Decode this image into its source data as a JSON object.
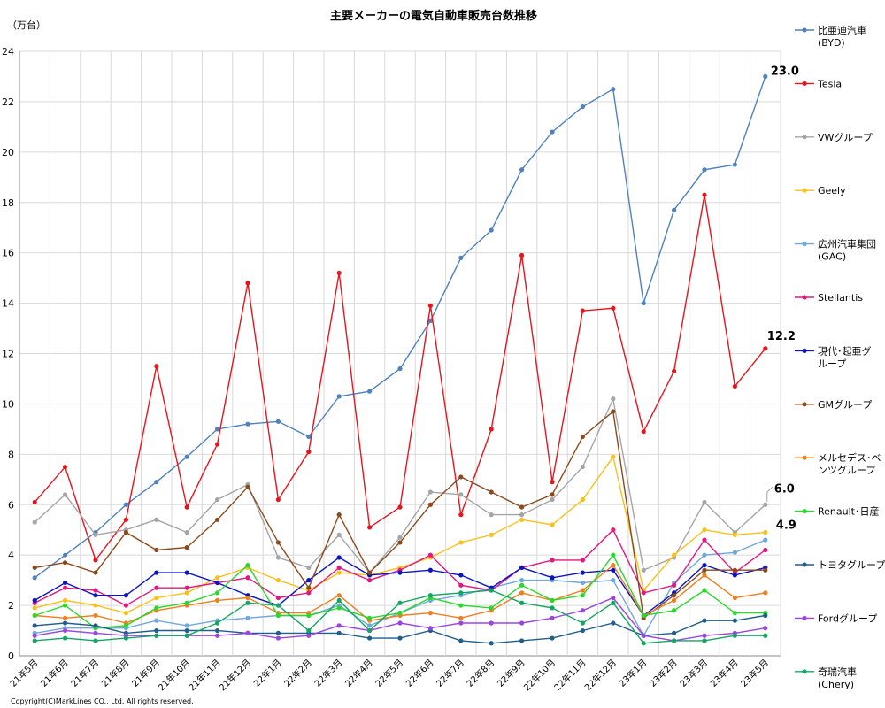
{
  "chart_data": {
    "type": "line",
    "title": "主要メーカーの電気自動車販売台数推移",
    "unit_label": "（万台）",
    "copyright": "Copyright(C)MarkLines CO., Ltd. All rights reserved.",
    "ylim": [
      0,
      24
    ],
    "yticks": [
      "0",
      "2",
      "4",
      "6",
      "8",
      "10",
      "12",
      "14",
      "16",
      "18",
      "20",
      "22",
      "24"
    ],
    "grid": true,
    "legend_position": "right",
    "categories": [
      "21年5月",
      "21年6月",
      "21年7月",
      "21年8月",
      "21年9月",
      "21年10月",
      "21年11月",
      "21年12月",
      "22年1月",
      "22年2月",
      "22年3月",
      "22年4月",
      "22年5月",
      "22年6月",
      "22年7月",
      "22年8月",
      "22年9月",
      "22年10月",
      "22年11月",
      "22年12月",
      "23年1月",
      "23年2月",
      "23年3月",
      "23年4月",
      "23年5月"
    ],
    "series": [
      {
        "name": "比亜迪汽車 (BYD)",
        "legend_lines": [
          "比亜迪汽車",
          "(BYD)"
        ],
        "color": "#4f81bd",
        "values": [
          3.1,
          4.0,
          4.9,
          6.0,
          6.9,
          7.9,
          9.0,
          9.2,
          9.3,
          8.7,
          10.3,
          10.5,
          11.4,
          13.3,
          15.8,
          16.9,
          19.3,
          20.8,
          21.8,
          22.5,
          14.0,
          17.7,
          19.3,
          19.5,
          23.0
        ]
      },
      {
        "name": "Tesla",
        "legend_lines": [
          "Tesla"
        ],
        "color": "#e8141c",
        "values": [
          6.1,
          7.5,
          3.8,
          5.4,
          11.5,
          5.9,
          8.4,
          14.8,
          6.2,
          8.1,
          15.2,
          5.1,
          5.9,
          13.9,
          5.6,
          9.0,
          15.9,
          6.9,
          13.7,
          13.8,
          8.9,
          11.3,
          18.3,
          10.7,
          12.2
        ]
      },
      {
        "name": "VWグループ",
        "legend_lines": [
          "VWグループ"
        ],
        "color": "#a5a5a5",
        "values": [
          5.3,
          6.4,
          4.8,
          5.0,
          5.4,
          4.9,
          6.2,
          6.8,
          3.9,
          3.5,
          4.8,
          3.3,
          4.7,
          6.5,
          6.4,
          5.6,
          5.6,
          6.2,
          7.5,
          10.2,
          3.4,
          3.9,
          6.1,
          4.9,
          6.0
        ]
      },
      {
        "name": "Geely",
        "legend_lines": [
          "Geely"
        ],
        "color": "#f9c118",
        "values": [
          1.9,
          2.2,
          2.0,
          1.7,
          2.3,
          2.5,
          3.1,
          3.5,
          3.0,
          2.6,
          3.3,
          3.2,
          3.5,
          3.9,
          4.5,
          4.8,
          5.4,
          5.2,
          6.2,
          7.9,
          2.6,
          4.0,
          5.0,
          4.8,
          4.9
        ]
      },
      {
        "name": "広州汽車集団 (GAC)",
        "legend_lines": [
          "広州汽車集団",
          "(GAC)"
        ],
        "color": "#6fa8dc",
        "values": [
          0.9,
          1.1,
          1.1,
          1.1,
          1.4,
          1.2,
          1.4,
          1.5,
          1.6,
          1.6,
          2.0,
          1.2,
          1.7,
          2.2,
          2.4,
          2.7,
          3.0,
          3.0,
          2.9,
          3.0,
          0.8,
          2.9,
          4.0,
          4.1,
          4.6
        ]
      },
      {
        "name": "Stellantis",
        "legend_lines": [
          "Stellantis"
        ],
        "color": "#e3177f",
        "values": [
          2.1,
          2.7,
          2.6,
          2.0,
          2.7,
          2.7,
          2.9,
          3.1,
          2.3,
          2.5,
          3.5,
          3.0,
          3.4,
          4.0,
          2.8,
          2.6,
          3.5,
          3.8,
          3.8,
          5.0,
          2.5,
          2.8,
          4.6,
          3.3,
          4.2
        ]
      },
      {
        "name": "現代･起亜グループ",
        "legend_lines": [
          "現代･起亜グ",
          "ループ"
        ],
        "color": "#0a14c2",
        "values": [
          2.2,
          2.9,
          2.4,
          2.4,
          3.3,
          3.3,
          2.9,
          2.4,
          2.0,
          3.0,
          3.9,
          3.2,
          3.3,
          3.4,
          3.2,
          2.7,
          3.5,
          3.1,
          3.3,
          3.4,
          1.6,
          2.5,
          3.6,
          3.2,
          3.5
        ]
      },
      {
        "name": "GMグループ",
        "legend_lines": [
          "GMグループ"
        ],
        "color": "#8b4a1c",
        "values": [
          3.5,
          3.7,
          3.3,
          4.9,
          4.2,
          4.3,
          5.4,
          6.7,
          4.5,
          2.7,
          5.6,
          3.3,
          4.5,
          6.0,
          7.1,
          6.5,
          5.9,
          6.4,
          8.7,
          9.7,
          1.5,
          2.4,
          3.4,
          3.4,
          3.4
        ]
      },
      {
        "name": "メルセデス･ベンツグループ",
        "legend_lines": [
          "メルセデス･ベ",
          "ンツグループ"
        ],
        "color": "#f07e1e",
        "values": [
          1.6,
          1.5,
          1.6,
          1.3,
          1.8,
          2.0,
          2.2,
          2.3,
          1.7,
          1.7,
          2.4,
          1.4,
          1.6,
          1.7,
          1.5,
          1.8,
          2.5,
          2.2,
          2.6,
          3.6,
          1.6,
          2.2,
          3.2,
          2.3,
          2.5
        ]
      },
      {
        "name": "Renault･日産",
        "legend_lines": [
          "Renault･日産"
        ],
        "color": "#28d92a",
        "values": [
          1.6,
          2.0,
          1.1,
          1.2,
          1.9,
          2.1,
          2.5,
          3.6,
          1.6,
          1.6,
          1.9,
          1.5,
          1.7,
          2.3,
          2.0,
          1.9,
          2.8,
          2.2,
          2.4,
          4.0,
          1.6,
          1.8,
          2.6,
          1.7,
          1.7
        ]
      },
      {
        "name": "トヨタグループ",
        "legend_lines": [
          "トヨタグループ"
        ],
        "color": "#1f5f8b",
        "values": [
          1.2,
          1.3,
          1.2,
          0.9,
          1.0,
          1.0,
          1.0,
          0.9,
          0.9,
          0.9,
          0.9,
          0.7,
          0.7,
          1.0,
          0.6,
          0.5,
          0.6,
          0.7,
          1.0,
          1.3,
          0.8,
          0.9,
          1.4,
          1.4,
          1.6
        ]
      },
      {
        "name": "Fordグループ",
        "legend_lines": [
          "Fordグループ"
        ],
        "color": "#9b45e0",
        "values": [
          0.8,
          1.0,
          0.9,
          0.8,
          0.8,
          0.8,
          0.8,
          0.9,
          0.7,
          0.8,
          1.2,
          1.0,
          1.3,
          1.1,
          1.3,
          1.3,
          1.3,
          1.5,
          1.8,
          2.3,
          0.8,
          0.6,
          0.8,
          0.9,
          1.1
        ]
      },
      {
        "name": "奇瑞汽車 (Chery)",
        "legend_lines": [
          "奇瑞汽車",
          "(Chery)"
        ],
        "color": "#14a562",
        "values": [
          0.6,
          0.7,
          0.6,
          0.7,
          0.8,
          0.8,
          1.3,
          2.1,
          2.0,
          1.0,
          2.2,
          1.0,
          2.1,
          2.4,
          2.5,
          2.6,
          2.1,
          1.9,
          1.3,
          2.1,
          0.5,
          0.6,
          0.6,
          0.8,
          0.8
        ]
      }
    ],
    "annotations": [
      {
        "text": "23.0",
        "series": "比亜迪汽車 (BYD)",
        "index": 24
      },
      {
        "text": "12.2",
        "series": "Tesla",
        "index": 24
      },
      {
        "text": "6.0",
        "series": "VWグループ",
        "index": 24
      },
      {
        "text": "4.9",
        "series": "Geely",
        "index": 24
      }
    ]
  }
}
